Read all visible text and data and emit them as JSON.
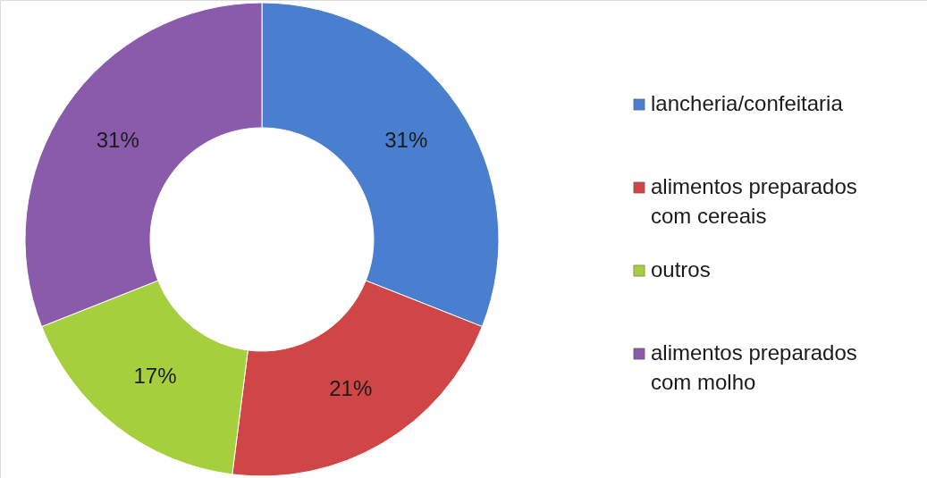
{
  "chart_data": {
    "type": "donut",
    "categories": [
      "lancheria/confeitaria",
      "alimentos preparados com cereais",
      "outros",
      "alimentos preparados com molho"
    ],
    "values": [
      31,
      21,
      17,
      31
    ],
    "colors": [
      "#4a7fcf",
      "#d04545",
      "#a6cf3e",
      "#8a5aab"
    ],
    "value_labels": [
      "31%",
      "21%",
      "17%",
      "31%"
    ],
    "legend": "right"
  }
}
